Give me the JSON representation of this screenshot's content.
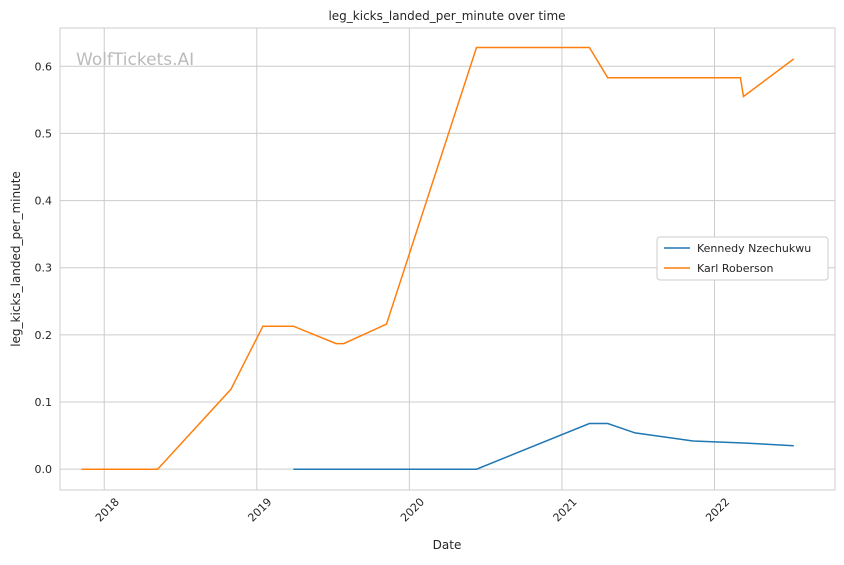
{
  "chart_data": {
    "type": "line",
    "title": "leg_kicks_landed_per_minute over time",
    "xlabel": "Date",
    "ylabel": "leg_kicks_landed_per_minute",
    "watermark": "WolfTickets.AI",
    "xlim": [
      2017.71,
      2022.79
    ],
    "ylim": [
      -0.031,
      0.657
    ],
    "xticks": [
      {
        "v": 2018,
        "label": "2018"
      },
      {
        "v": 2019,
        "label": "2019"
      },
      {
        "v": 2020,
        "label": "2020"
      },
      {
        "v": 2021,
        "label": "2021"
      },
      {
        "v": 2022,
        "label": "2022"
      }
    ],
    "yticks": [
      {
        "v": 0,
        "label": "0.0"
      },
      {
        "v": 0.1,
        "label": "0.1"
      },
      {
        "v": 0.2,
        "label": "0.2"
      },
      {
        "v": 0.3,
        "label": "0.3"
      },
      {
        "v": 0.4,
        "label": "0.4"
      },
      {
        "v": 0.5,
        "label": "0.5"
      },
      {
        "v": 0.6,
        "label": "0.6"
      }
    ],
    "legend_position": "center-right",
    "series": [
      {
        "name": "Kennedy Nzechukwu",
        "color": "#1f77b4",
        "x": [
          2019.24,
          2020.44,
          2021.18,
          2021.3,
          2021.48,
          2021.86,
          2022.19,
          2022.52
        ],
        "y": [
          0,
          0,
          0.068,
          0.068,
          0.054,
          0.042,
          0.039,
          0.035
        ]
      },
      {
        "name": "Karl Roberson",
        "color": "#ff7f0e",
        "x": [
          2017.85,
          2018.35,
          2018.83,
          2019.04,
          2019.24,
          2019.52,
          2019.57,
          2019.85,
          2020.44,
          2021.18,
          2021.3,
          2022.17,
          2022.19,
          2022.52
        ],
        "y": [
          0,
          0,
          0.119,
          0.213,
          0.213,
          0.187,
          0.187,
          0.216,
          0.628,
          0.628,
          0.583,
          0.583,
          0.555,
          0.611
        ]
      }
    ]
  }
}
